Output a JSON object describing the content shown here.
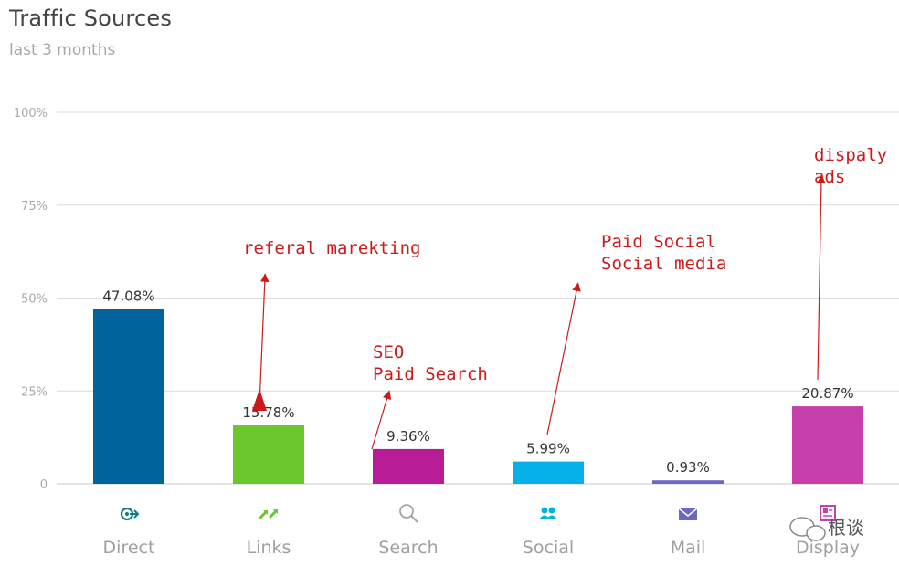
{
  "header": {
    "title": "Traffic Sources",
    "subtitle": "last 3 months"
  },
  "chart_data": {
    "type": "bar",
    "title": "Traffic Sources",
    "subtitle": "last 3 months",
    "categories": [
      "Direct",
      "Links",
      "Search",
      "Social",
      "Mail",
      "Display"
    ],
    "values": [
      47.08,
      15.78,
      9.36,
      5.99,
      0.93,
      20.87
    ],
    "data_labels": [
      "47.08%",
      "15.78%",
      "9.36%",
      "5.99%",
      "0.93%",
      "20.87%"
    ],
    "colors": [
      "#00639b",
      "#6cc72c",
      "#b81c97",
      "#06b0e8",
      "#6c67c0",
      "#c73fab"
    ],
    "icons": [
      "direct-target-icon",
      "links-arrows-icon",
      "search-magnifier-icon",
      "social-people-icon",
      "mail-envelope-icon",
      "display-ad-icon"
    ],
    "yticks": [
      "0",
      "25%",
      "50%",
      "75%",
      "100%"
    ],
    "ylim": [
      0,
      100
    ],
    "grid": true,
    "xlabel": "",
    "ylabel": ""
  },
  "annotations": [
    {
      "lines": [
        "referal marekting"
      ],
      "target": "Links"
    },
    {
      "lines": [
        "SEO",
        "Paid Search"
      ],
      "target": "Search"
    },
    {
      "lines": [
        "Paid Social",
        "Social media"
      ],
      "target": "Social"
    },
    {
      "lines": [
        "dispaly",
        "ads"
      ],
      "target": "Display"
    }
  ],
  "watermark": "根谈",
  "annotation_color": "#cc1a1a"
}
